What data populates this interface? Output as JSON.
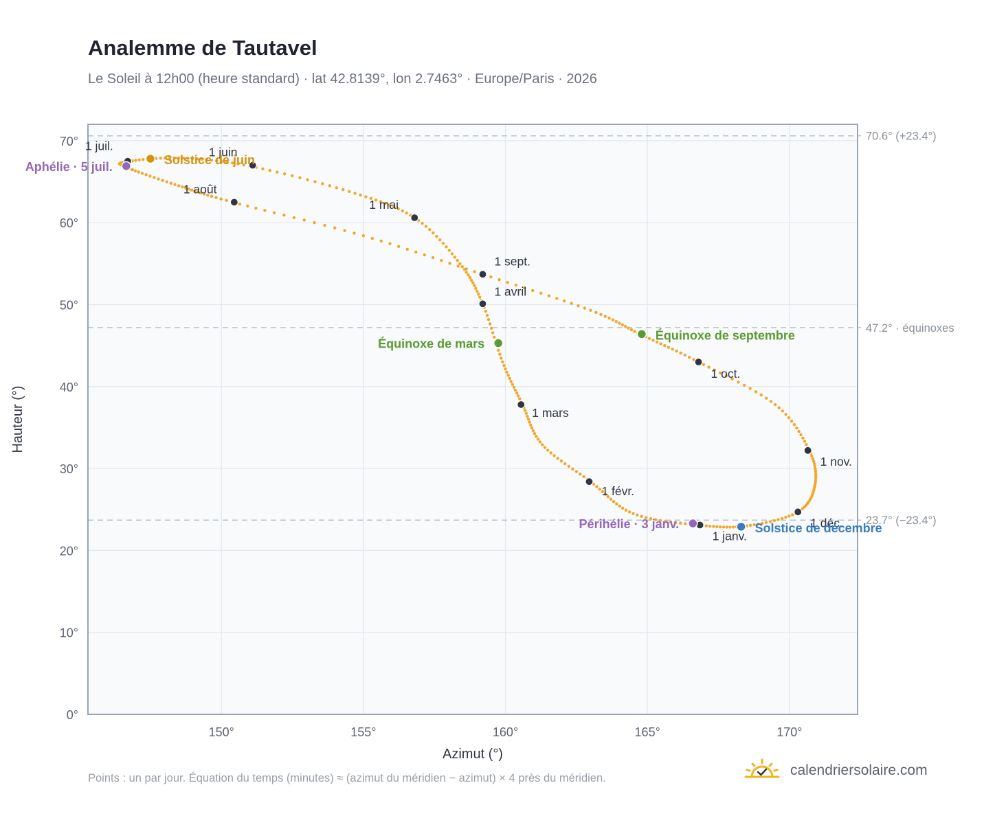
{
  "title": "Analemme de Tautavel",
  "subtitle": "Le Soleil à 12h00 (heure standard) · lat 42.8139°, lon 2.7463° · Europe/Paris · 2026",
  "footnote": "Points : un par jour. Équation du temps (minutes) ≈ (azimut du méridien − azimut) × 4 près du méridien.",
  "brand": {
    "name": "calendriersolaire.com",
    "icon": "sun-check-icon",
    "color": "#f2b31c"
  },
  "colors": {
    "curve": "#f2a72c",
    "month_dot": "#2f3542",
    "solstice_june": "#d4930f",
    "solstice_december": "#3a7bbf",
    "equinox": "#5a9a30",
    "perihelion_aphelion": "#9468b8",
    "reference_line": "#b8c2cc",
    "plot_background": "#f8fafc",
    "grid": "#e2e7ee",
    "frame": "#9aa6b6"
  },
  "chart_data": {
    "type": "scatter",
    "xlabel": "Azimut (°)",
    "ylabel": "Hauteur (°)",
    "xlim": [
      145.3,
      172.4
    ],
    "ylim": [
      0,
      72
    ],
    "xticks": [
      150,
      155,
      160,
      165,
      170
    ],
    "xtick_labels": [
      "150°",
      "155°",
      "160°",
      "165°",
      "170°"
    ],
    "yticks": [
      0,
      10,
      20,
      30,
      40,
      50,
      60,
      70
    ],
    "ytick_labels": [
      "0°",
      "10°",
      "20°",
      "30°",
      "40°",
      "50°",
      "60°",
      "70°"
    ],
    "grid": true,
    "series": [
      {
        "description": "daily sun position at 12h00, one point per day, Jan 1 to Dec 31",
        "points": [
          [
            166.8,
            23.1
          ],
          [
            164.5,
            24.5
          ],
          [
            163.0,
            28.4
          ],
          [
            161.3,
            32.9
          ],
          [
            160.6,
            37.8
          ],
          [
            159.9,
            43.0
          ],
          [
            159.2,
            50.1
          ],
          [
            158.4,
            55.0
          ],
          [
            156.8,
            60.6
          ],
          [
            154.5,
            63.8
          ],
          [
            151.0,
            66.9
          ],
          [
            148.5,
            67.9
          ],
          [
            146.6,
            67.4
          ],
          [
            146.7,
            66.7
          ],
          [
            148.5,
            64.5
          ],
          [
            150.4,
            62.5
          ],
          [
            155.0,
            58.4
          ],
          [
            159.2,
            53.7
          ],
          [
            163.0,
            49.3
          ],
          [
            164.8,
            46.3
          ],
          [
            166.8,
            43.0
          ],
          [
            169.5,
            37.8
          ],
          [
            170.7,
            32.2
          ],
          [
            170.9,
            28.0
          ],
          [
            170.3,
            24.7
          ],
          [
            168.5,
            23.0
          ],
          [
            166.8,
            23.1
          ]
        ]
      }
    ],
    "month_markers": [
      {
        "label": "1 janv.",
        "az": 166.85,
        "alt": 23.1
      },
      {
        "label": "1 févr.",
        "az": 162.95,
        "alt": 28.4
      },
      {
        "label": "1 mars",
        "az": 160.55,
        "alt": 37.8
      },
      {
        "label": "1 avril",
        "az": 159.2,
        "alt": 50.1
      },
      {
        "label": "1 mai",
        "az": 156.8,
        "alt": 60.6
      },
      {
        "label": "1 juin",
        "az": 151.1,
        "alt": 67.0
      },
      {
        "label": "1 juil.",
        "az": 146.7,
        "alt": 67.5
      },
      {
        "label": "1 août",
        "az": 150.45,
        "alt": 62.5
      },
      {
        "label": "1 sept.",
        "az": 159.2,
        "alt": 53.7
      },
      {
        "label": "1 oct.",
        "az": 166.8,
        "alt": 43.0
      },
      {
        "label": "1 nov.",
        "az": 170.65,
        "alt": 32.2
      },
      {
        "label": "1 déc.",
        "az": 170.3,
        "alt": 24.7
      }
    ],
    "events": [
      {
        "label": "Solstice de juin",
        "az": 147.5,
        "alt": 67.8,
        "color_key": "solstice_june"
      },
      {
        "label": "Aphélie · 5 juil.",
        "az": 146.65,
        "alt": 66.9,
        "color_key": "perihelion_aphelion"
      },
      {
        "label": "Équinoxe de mars",
        "az": 159.75,
        "alt": 45.3,
        "color_key": "equinox"
      },
      {
        "label": "Équinoxe de septembre",
        "az": 164.8,
        "alt": 46.4,
        "color_key": "equinox"
      },
      {
        "label": "Périhélie · 3 janv.",
        "az": 166.6,
        "alt": 23.3,
        "color_key": "perihelion_aphelion"
      },
      {
        "label": "Solstice de décembre",
        "az": 168.3,
        "alt": 22.9,
        "color_key": "solstice_december"
      }
    ],
    "reference_lines": [
      {
        "alt": 70.6,
        "label": "70.6° (+23.4°)"
      },
      {
        "alt": 47.2,
        "label": "47.2° · équinoxes"
      },
      {
        "alt": 23.7,
        "label": "23.7° (−23.4°)"
      }
    ]
  }
}
